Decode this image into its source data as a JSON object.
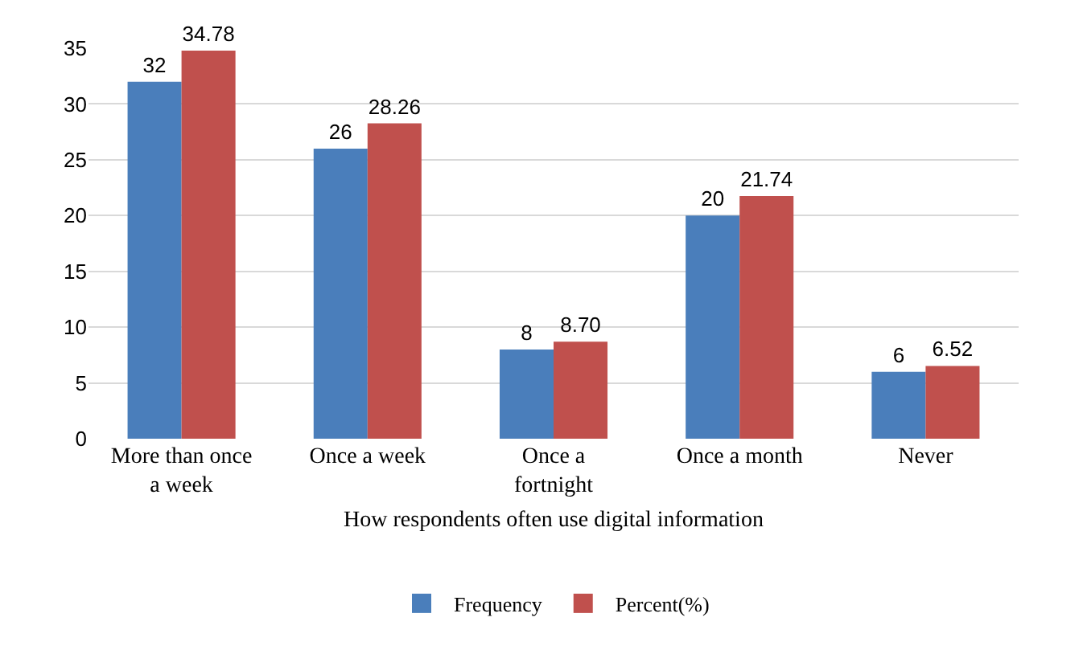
{
  "chart_data": {
    "type": "bar",
    "xlabel": "How respondents often use digital information",
    "categories": [
      "More than once a week",
      "Once a week",
      "Once a fortnight",
      "Once a month",
      "Never"
    ],
    "series": [
      {
        "name": "Frequency",
        "color": "#4a7ebb",
        "values": [
          32,
          26,
          8,
          20,
          6
        ],
        "value_labels": [
          "32",
          "26",
          "8",
          "20",
          "6"
        ]
      },
      {
        "name": "Percent(%)",
        "color": "#c0504d",
        "values": [
          34.78,
          28.26,
          8.7,
          21.74,
          6.52
        ],
        "value_labels": [
          "34.78",
          "28.26",
          "8.70",
          "21.74",
          "6.52"
        ]
      }
    ],
    "ylim": [
      0,
      35
    ],
    "yticks": [
      0,
      5,
      10,
      15,
      20,
      25,
      30,
      35
    ],
    "grid": "y",
    "legend": "bottom"
  }
}
